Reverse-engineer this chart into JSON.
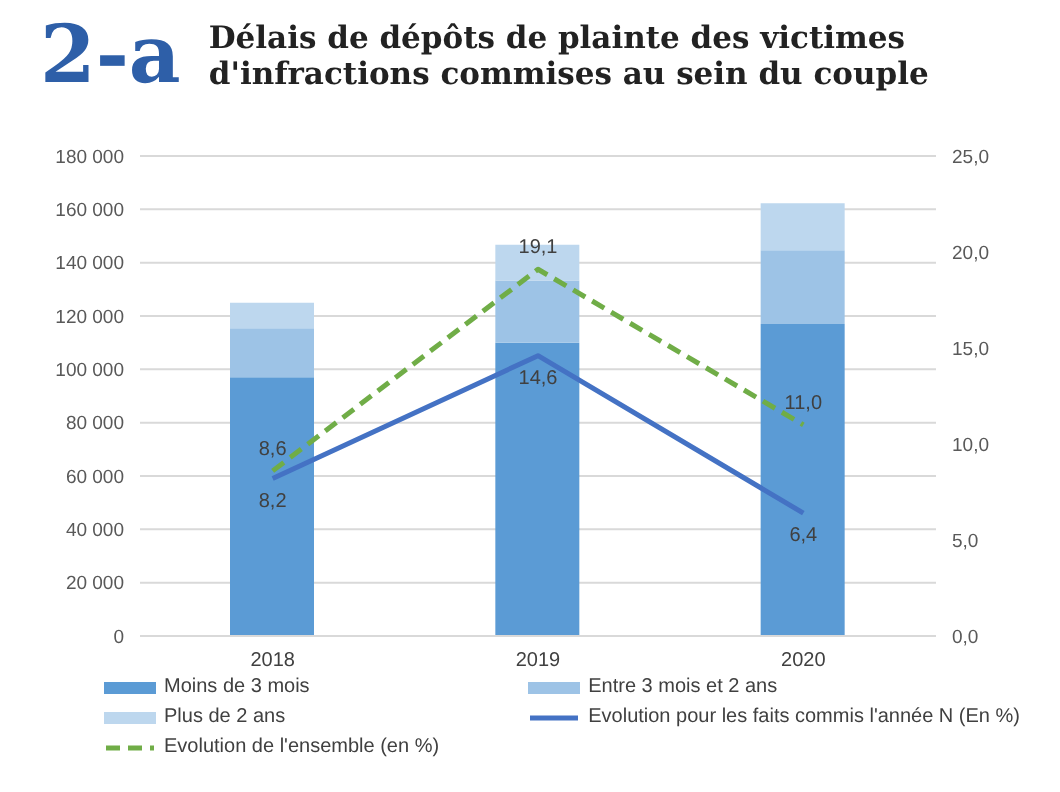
{
  "chart_data": {
    "type": "bar",
    "title": "Délais de dépôts de plainte des victimes d'infractions commises au sein du couple",
    "annotations": [
      "2-a"
    ],
    "categories": [
      "2018",
      "2019",
      "2020"
    ],
    "stacked": true,
    "series": [
      {
        "name": "Moins de 3 mois",
        "color": "#5b9bd5",
        "values": [
          97000,
          110000,
          117000
        ]
      },
      {
        "name": "Entre 3 mois et 2 ans",
        "color": "#9dc3e6",
        "values": [
          18400,
          23300,
          27700
        ]
      },
      {
        "name": "Plus de 2 ans",
        "color": "#bdd7ee",
        "values": [
          9600,
          13400,
          17600
        ]
      },
      {
        "name": "Evolution pour les faits commis l'année N (En %)",
        "type": "line",
        "axis": "y2",
        "color": "#4472c4",
        "line_style": "solid",
        "values": [
          8.2,
          14.6,
          6.4
        ],
        "value_labels": [
          "8,2",
          "14,6",
          "6,4"
        ]
      },
      {
        "name": "Evolution de l'ensemble (en %)",
        "type": "line",
        "axis": "y2",
        "color": "#70ad47",
        "line_style": "dashed",
        "values": [
          8.6,
          19.1,
          11.0
        ],
        "value_labels": [
          "8,6",
          "19,1",
          "11,0"
        ]
      }
    ],
    "ylim": [
      0,
      180000
    ],
    "yticks": [
      {
        "value": 0,
        "label": "0"
      },
      {
        "value": 20000,
        "label": "20 000"
      },
      {
        "value": 40000,
        "label": "40 000"
      },
      {
        "value": 60000,
        "label": "60 000"
      },
      {
        "value": 80000,
        "label": "80 000"
      },
      {
        "value": 100000,
        "label": "100 000"
      },
      {
        "value": 120000,
        "label": "120 000"
      },
      {
        "value": 140000,
        "label": "140 000"
      },
      {
        "value": 160000,
        "label": "160 000"
      },
      {
        "value": 180000,
        "label": "180 000"
      }
    ],
    "y2lim": [
      0,
      25
    ],
    "y2ticks": [
      {
        "value": 0,
        "label": "0,0"
      },
      {
        "value": 5,
        "label": "5,0"
      },
      {
        "value": 10,
        "label": "10,0"
      },
      {
        "value": 15,
        "label": "15,0"
      },
      {
        "value": 20,
        "label": "20,0"
      },
      {
        "value": 25,
        "label": "25,0"
      }
    ],
    "grid": "y",
    "legend": "bottom",
    "marker": "none"
  }
}
